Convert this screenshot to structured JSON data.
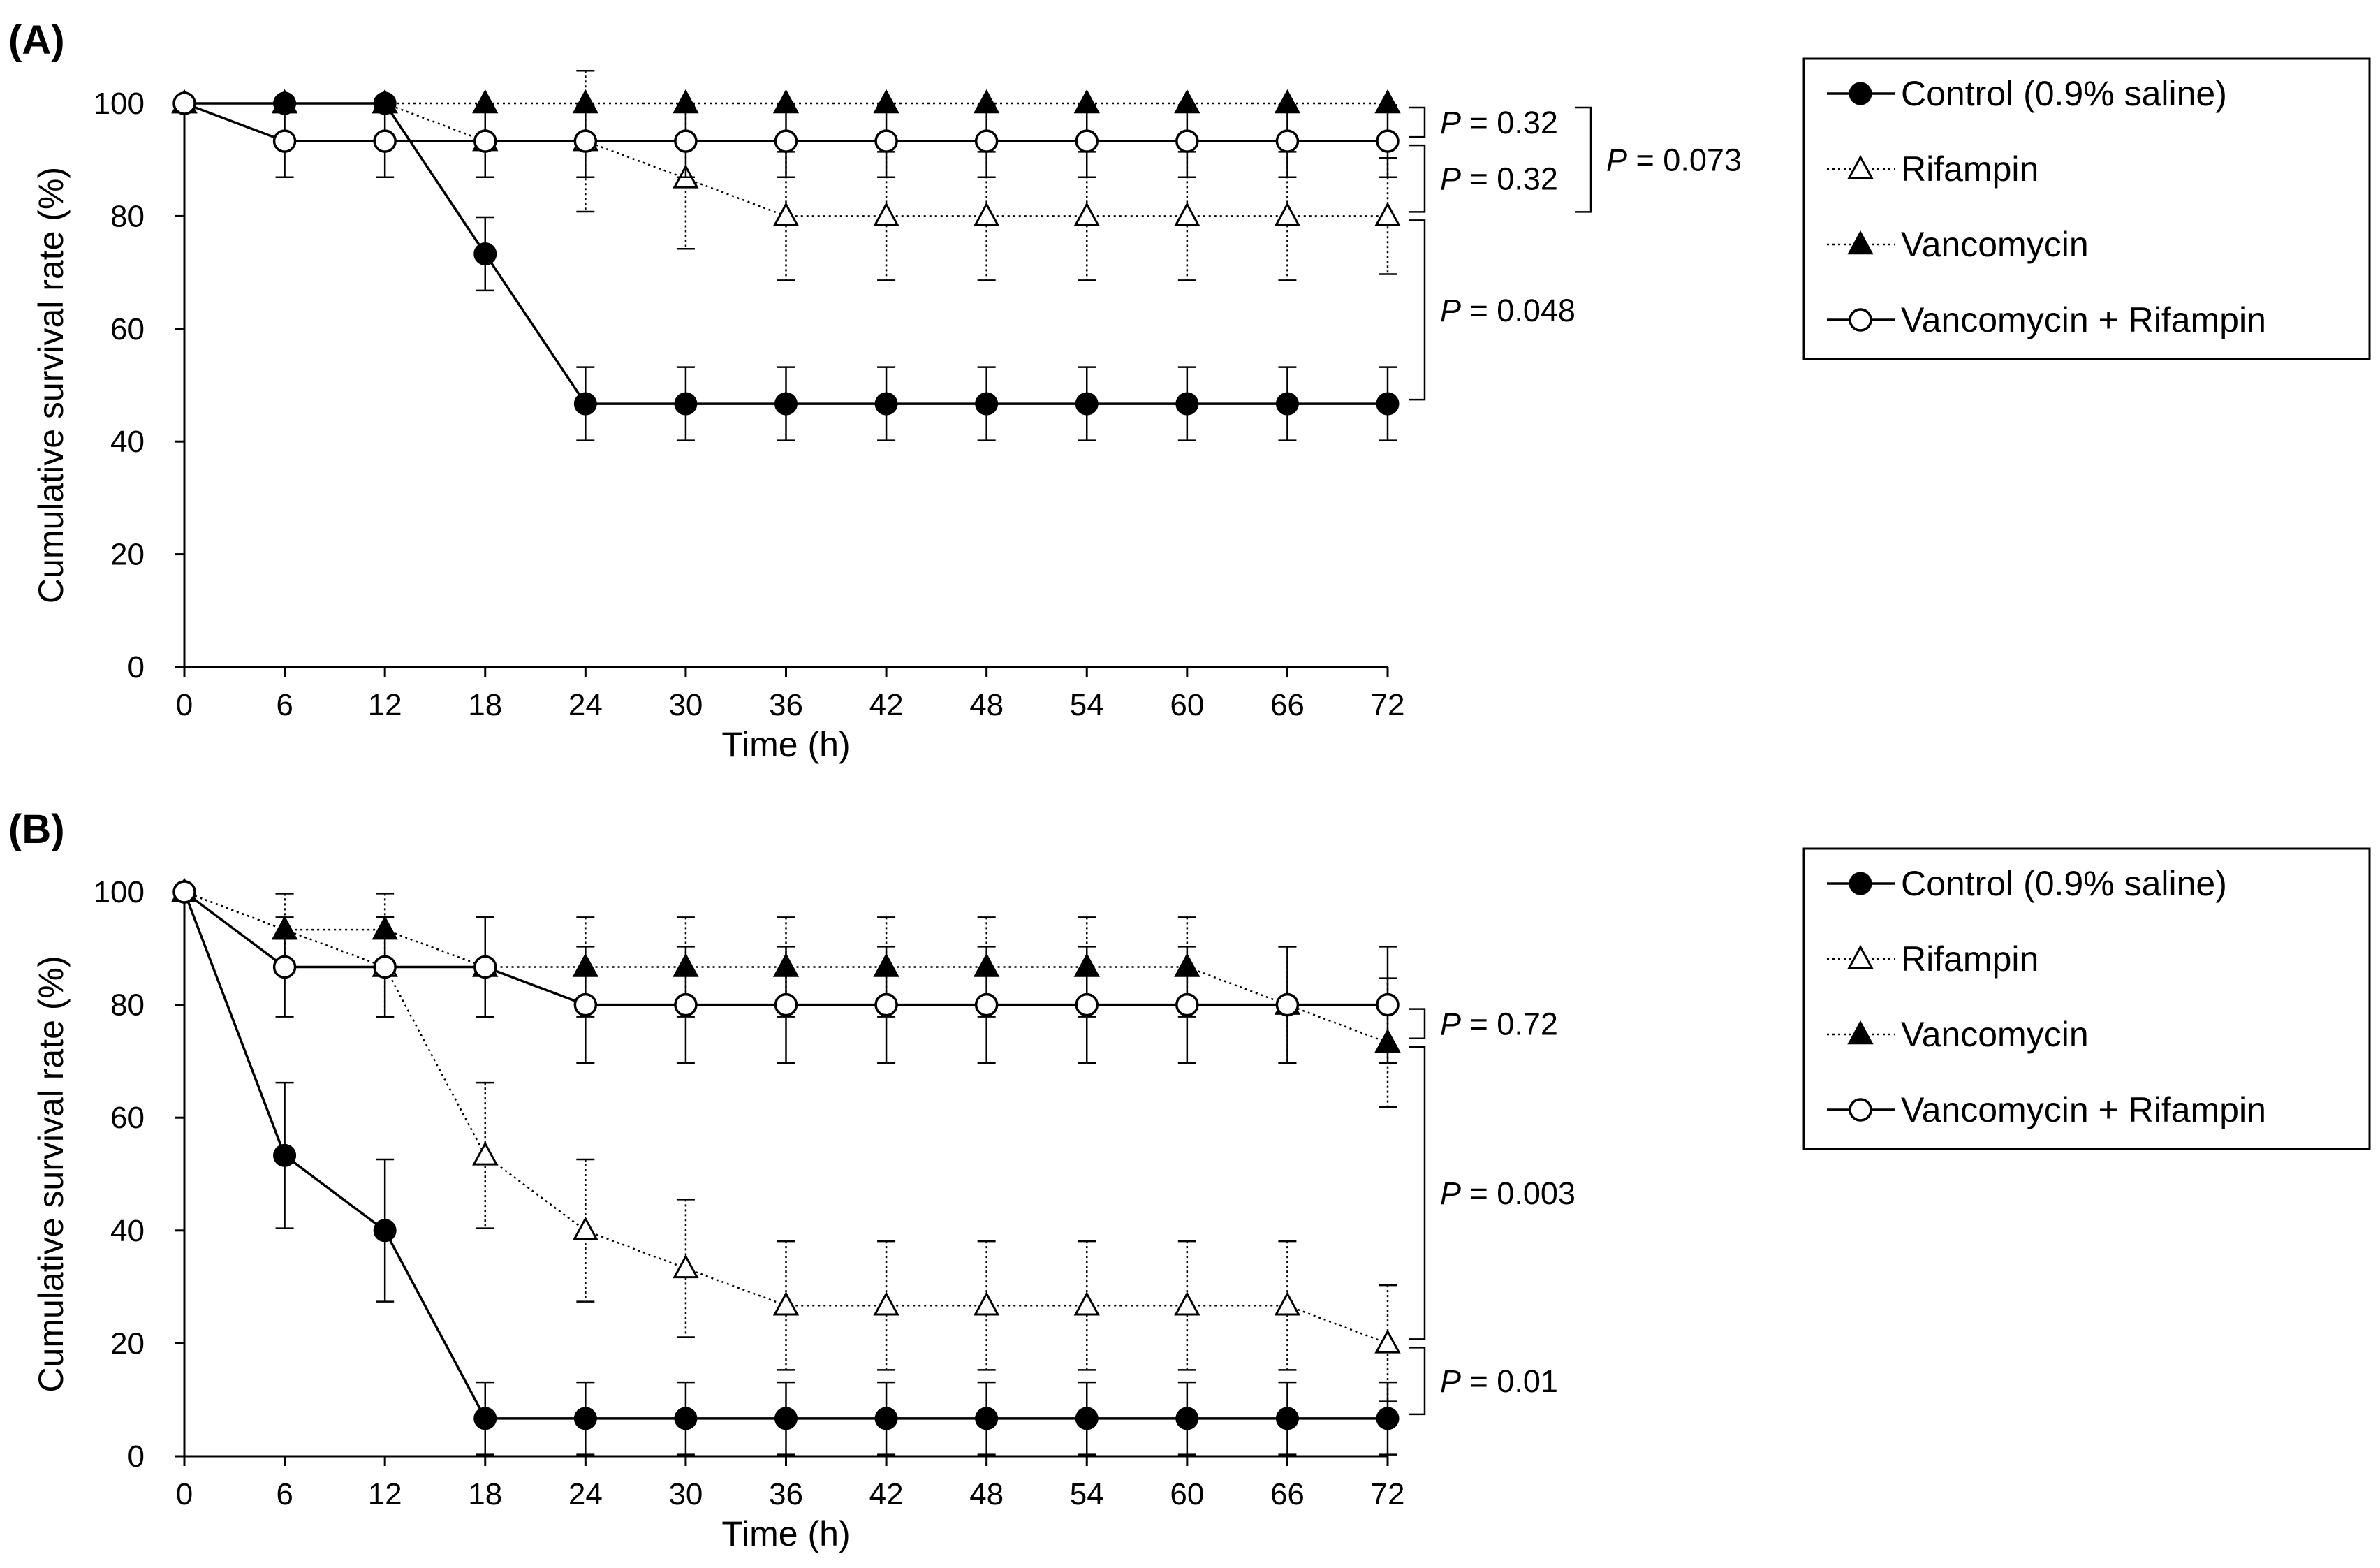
{
  "chart_data": [
    {
      "type": "line",
      "panel_label": "(A)",
      "xlabel": "Time (h)",
      "ylabel": "Cumulative survival rate (%)",
      "x": [
        0,
        6,
        12,
        18,
        24,
        30,
        36,
        42,
        48,
        54,
        60,
        66,
        72
      ],
      "xticks": [
        "0",
        "6",
        "12",
        "18",
        "24",
        "30",
        "36",
        "42",
        "48",
        "54",
        "60",
        "66",
        "72"
      ],
      "yticks": [
        "0",
        "20",
        "40",
        "60",
        "80",
        "100"
      ],
      "xlim": [
        0,
        72
      ],
      "ylim": [
        0,
        100
      ],
      "series": [
        {
          "name": "Control (0.9% saline)",
          "marker": "filled-circle",
          "line": "solid",
          "values": [
            100,
            100,
            100,
            73.3,
            46.7,
            46.7,
            46.7,
            46.7,
            46.7,
            46.7,
            46.7,
            46.7,
            46.7
          ],
          "errors": [
            0,
            0,
            0,
            6.5,
            6.5,
            6.5,
            6.5,
            6.5,
            6.5,
            6.5,
            6.5,
            6.5,
            6.5
          ]
        },
        {
          "name": "Rifampin",
          "marker": "open-triangle",
          "line": "dotted",
          "values": [
            100,
            100,
            100,
            93.3,
            93.3,
            86.7,
            80,
            80,
            80,
            80,
            80,
            80,
            80
          ],
          "errors": [
            0,
            0,
            0,
            6.4,
            12.5,
            12.5,
            11.4,
            11.4,
            11.4,
            11.4,
            11.4,
            11.4,
            10.3
          ]
        },
        {
          "name": "Vancomycin",
          "marker": "filled-triangle",
          "line": "dotted",
          "values": [
            100,
            100,
            100,
            100,
            100,
            100,
            100,
            100,
            100,
            100,
            100,
            100,
            100
          ],
          "errors": [
            0,
            0,
            0,
            0,
            0,
            0,
            0,
            0,
            0,
            0,
            0,
            0,
            0
          ]
        },
        {
          "name": "Vancomycin + Rifampin",
          "marker": "open-circle",
          "line": "solid",
          "values": [
            100,
            93.3,
            93.3,
            93.3,
            93.3,
            93.3,
            93.3,
            93.3,
            93.3,
            93.3,
            93.3,
            93.3,
            93.3
          ],
          "errors": [
            0,
            6.4,
            6.4,
            6.4,
            6.4,
            6.4,
            6.4,
            6.4,
            6.4,
            6.4,
            6.4,
            6.4,
            6.4
          ]
        }
      ],
      "annotations": [
        {
          "label": "P",
          "value": " = 0.32",
          "y_range": [
            93.3,
            100
          ]
        },
        {
          "label": "P",
          "value": " = 0.32",
          "y_range": [
            80,
            93.3
          ]
        },
        {
          "label": "P",
          "value": " = 0.073",
          "y_range": [
            80,
            100
          ]
        },
        {
          "label": "P",
          "value": " = 0.048",
          "y_range": [
            46.7,
            80
          ]
        }
      ]
    },
    {
      "type": "line",
      "panel_label": "(B)",
      "xlabel": "Time (h)",
      "ylabel": "Cumulative survival rate (%)",
      "x": [
        0,
        6,
        12,
        18,
        24,
        30,
        36,
        42,
        48,
        54,
        60,
        66,
        72
      ],
      "xticks": [
        "0",
        "6",
        "12",
        "18",
        "24",
        "30",
        "36",
        "42",
        "48",
        "54",
        "60",
        "66",
        "72"
      ],
      "yticks": [
        "0",
        "20",
        "40",
        "60",
        "80",
        "100"
      ],
      "xlim": [
        0,
        72
      ],
      "ylim": [
        0,
        100
      ],
      "series": [
        {
          "name": "Control (0.9% saline)",
          "marker": "filled-circle",
          "line": "solid",
          "values": [
            100,
            53.3,
            40,
            6.7,
            6.7,
            6.7,
            6.7,
            6.7,
            6.7,
            6.7,
            6.7,
            6.7,
            6.7
          ],
          "errors": [
            0,
            12.9,
            12.6,
            6.4,
            6.4,
            6.4,
            6.4,
            6.4,
            6.4,
            6.4,
            6.4,
            6.4,
            6.4
          ]
        },
        {
          "name": "Rifampin",
          "marker": "open-triangle",
          "line": "dotted",
          "values": [
            100,
            93.3,
            86.7,
            53.3,
            40,
            33.3,
            26.7,
            26.7,
            26.7,
            26.7,
            26.7,
            26.7,
            20
          ],
          "errors": [
            0,
            6.4,
            8.8,
            12.9,
            12.6,
            12.2,
            11.4,
            11.4,
            11.4,
            11.4,
            11.4,
            11.4,
            10.3
          ]
        },
        {
          "name": "Vancomycin",
          "marker": "filled-triangle",
          "line": "dotted",
          "values": [
            100,
            93.3,
            93.3,
            86.7,
            86.7,
            86.7,
            86.7,
            86.7,
            86.7,
            86.7,
            86.7,
            80,
            73.3
          ],
          "errors": [
            0,
            6.4,
            6.4,
            8.8,
            8.8,
            8.8,
            8.8,
            8.8,
            8.8,
            8.8,
            8.8,
            10.3,
            11.4
          ]
        },
        {
          "name": "Vancomycin + Rifampin",
          "marker": "open-circle",
          "line": "solid",
          "values": [
            100,
            86.7,
            86.7,
            86.7,
            80,
            80,
            80,
            80,
            80,
            80,
            80,
            80,
            80
          ],
          "errors": [
            0,
            8.8,
            8.8,
            8.8,
            10.3,
            10.3,
            10.3,
            10.3,
            10.3,
            10.3,
            10.3,
            10.3,
            10.3
          ]
        }
      ],
      "annotations": [
        {
          "label": "P",
          "value": " = 0.72",
          "y_range": [
            73.3,
            80
          ]
        },
        {
          "label": "P",
          "value": " = 0.003",
          "y_range": [
            20,
            73.3
          ]
        },
        {
          "label": "P",
          "value": " = 0.01",
          "y_range": [
            6.7,
            20
          ]
        }
      ]
    }
  ]
}
